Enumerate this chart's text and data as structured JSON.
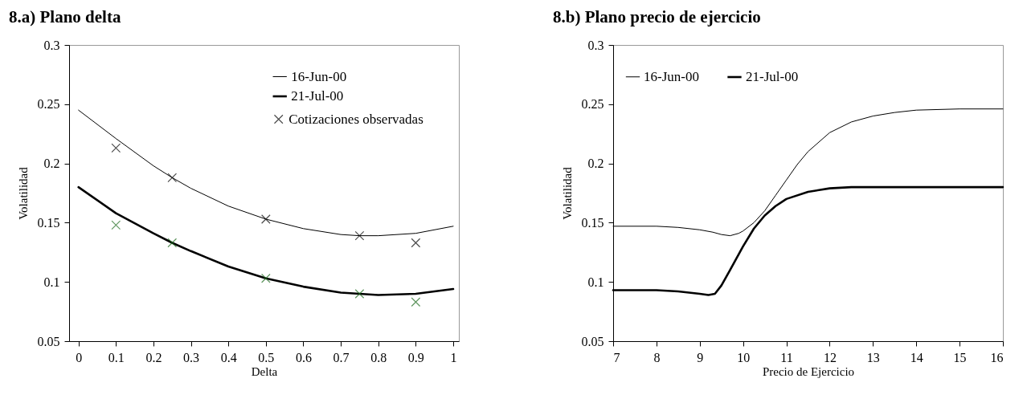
{
  "chart_data": [
    {
      "type": "line",
      "title": "8.a) Plano delta",
      "xlabel": "Delta",
      "ylabel": "Volatilidad",
      "xlim": [
        -0.025,
        1.015
      ],
      "xticks": [
        0,
        0.1,
        0.2,
        0.3,
        0.4,
        0.5,
        0.6,
        0.7,
        0.8,
        0.9,
        1
      ],
      "ylim": [
        0.05,
        0.3
      ],
      "yticks": [
        0.05,
        0.1,
        0.15,
        0.2,
        0.25,
        0.3
      ],
      "legend": "top right",
      "line_style": "solid",
      "series": [
        {
          "name": "16-Jun-00",
          "color": "#000000",
          "x": [
            0,
            0.1,
            0.2,
            0.25,
            0.3,
            0.4,
            0.5,
            0.6,
            0.7,
            0.75,
            0.8,
            0.9,
            1
          ],
          "values": [
            0.245,
            0.221,
            0.198,
            0.188,
            0.179,
            0.164,
            0.153,
            0.145,
            0.14,
            0.139,
            0.139,
            0.141,
            0.147
          ]
        },
        {
          "name": "21-Jul-00",
          "color": "#000000",
          "x": [
            0,
            0.1,
            0.2,
            0.25,
            0.3,
            0.4,
            0.5,
            0.6,
            0.7,
            0.75,
            0.8,
            0.9,
            1
          ],
          "values": [
            0.18,
            0.158,
            0.141,
            0.133,
            0.126,
            0.113,
            0.103,
            0.096,
            0.091,
            0.09,
            0.089,
            0.09,
            0.094
          ]
        },
        {
          "name": "Cotizaciones observadas",
          "type": "scatter",
          "marker": "cross",
          "color": "#000000",
          "x": [
            0.1,
            0.25,
            0.5,
            0.75,
            0.9
          ],
          "values": [
            0.213,
            0.188,
            0.153,
            0.139,
            0.133
          ]
        },
        {
          "type": "scatter",
          "marker": "cross",
          "color": "#1e6b1e",
          "x": [
            0.1,
            0.25,
            0.5,
            0.75,
            0.9
          ],
          "values": [
            0.148,
            0.133,
            0.103,
            0.09,
            0.083
          ]
        }
      ]
    },
    {
      "type": "line",
      "title": "8.b)  Plano precio de ejercicio",
      "xlabel": "Precio de Ejercicio",
      "ylabel": "Volatilidad",
      "xlim": [
        7,
        16
      ],
      "xticks": [
        7,
        8,
        9,
        10,
        11,
        12,
        13,
        14,
        15,
        16
      ],
      "ylim": [
        0.05,
        0.3
      ],
      "yticks": [
        0.05,
        0.1,
        0.15,
        0.2,
        0.25,
        0.3
      ],
      "legend": "top left",
      "line_style": "solid",
      "series": [
        {
          "name": "16-Jun-00",
          "color": "#000000",
          "x": [
            7,
            8,
            8.5,
            9,
            9.3,
            9.5,
            9.7,
            9.9,
            10,
            10.25,
            10.5,
            10.75,
            11,
            11.25,
            11.5,
            12,
            12.5,
            13,
            13.5,
            14,
            15,
            16
          ],
          "values": [
            0.147,
            0.147,
            0.146,
            0.144,
            0.142,
            0.14,
            0.139,
            0.141,
            0.143,
            0.15,
            0.16,
            0.173,
            0.186,
            0.199,
            0.21,
            0.226,
            0.235,
            0.24,
            0.243,
            0.245,
            0.246,
            0.246
          ]
        },
        {
          "name": "21-Jul-00",
          "color": "#000000",
          "x": [
            7,
            8,
            8.5,
            9,
            9.2,
            9.35,
            9.5,
            9.7,
            10,
            10.25,
            10.5,
            10.75,
            11,
            11.5,
            12,
            12.5,
            13,
            14,
            15,
            16
          ],
          "values": [
            0.093,
            0.093,
            0.092,
            0.09,
            0.089,
            0.09,
            0.097,
            0.11,
            0.13,
            0.145,
            0.156,
            0.164,
            0.17,
            0.176,
            0.179,
            0.18,
            0.18,
            0.18,
            0.18,
            0.18
          ]
        }
      ]
    }
  ]
}
